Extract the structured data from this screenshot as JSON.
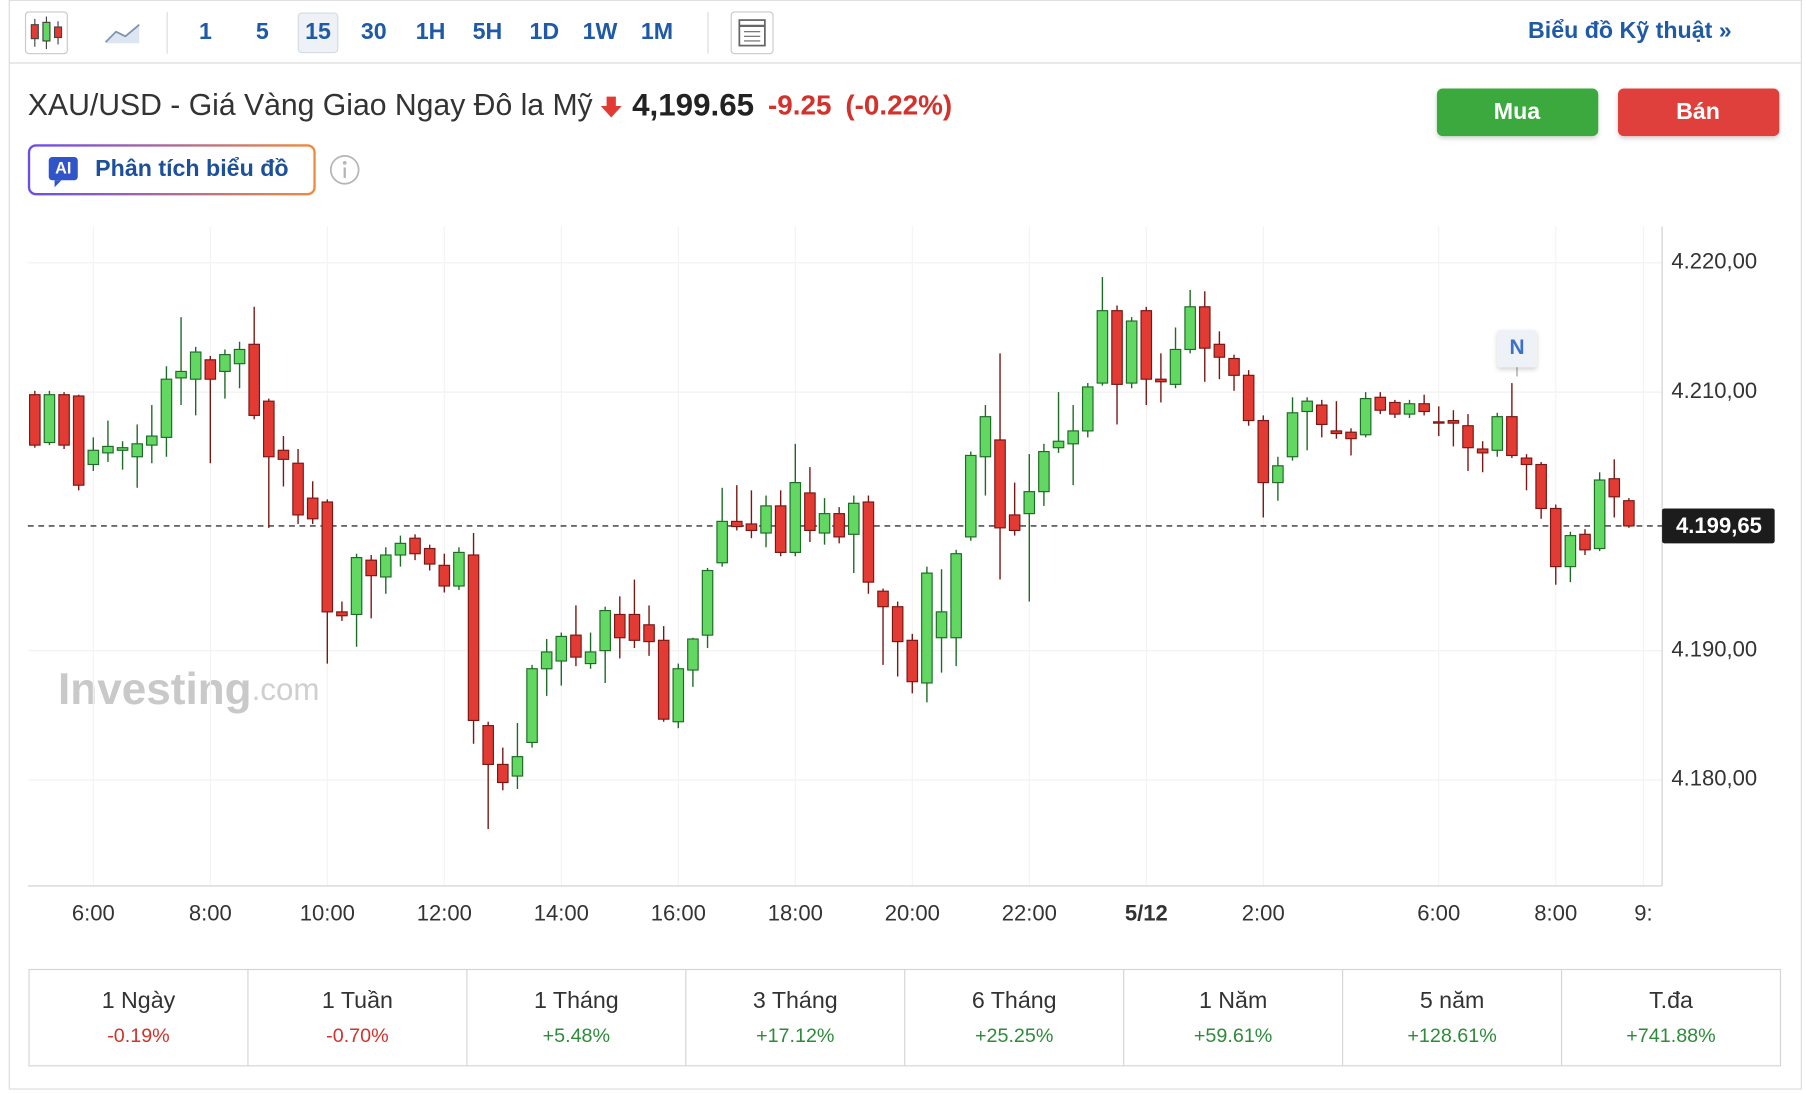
{
  "toolbar": {
    "intervals": [
      "1",
      "5",
      "15",
      "30",
      "1H",
      "5H",
      "1D",
      "1W",
      "1M"
    ],
    "selected_interval": "15",
    "link": "Biểu đồ Kỹ thuật »"
  },
  "header": {
    "title": "XAU/USD - Giá Vàng Giao Ngay Đô la Mỹ",
    "price": "4,199.65",
    "change": "-9.25",
    "change_percent": "(-0.22%)",
    "buy": "Mua",
    "sell": "Bán",
    "ai_label": "AI",
    "ai_button": "Phân tích biểu đồ"
  },
  "chart_data": {
    "type": "candlestick",
    "categories": [
      null,
      null,
      null,
      null,
      "6:00",
      null,
      null,
      null,
      null,
      null,
      null,
      null,
      "8:00",
      null,
      null,
      null,
      null,
      null,
      null,
      null,
      "10:00",
      null,
      null,
      null,
      null,
      null,
      null,
      null,
      "12:00",
      null,
      null,
      null,
      null,
      null,
      null,
      null,
      "14:00",
      null,
      null,
      null,
      null,
      null,
      null,
      null,
      "16:00",
      null,
      null,
      null,
      null,
      null,
      null,
      null,
      "18:00",
      null,
      null,
      null,
      null,
      null,
      null,
      null,
      "20:00",
      null,
      null,
      null,
      null,
      null,
      null,
      null,
      "22:00",
      null,
      null,
      null,
      null,
      null,
      null,
      null,
      "5/12",
      null,
      null,
      null,
      null,
      null,
      null,
      null,
      "2:00",
      null,
      null,
      null,
      null,
      null,
      null,
      null,
      null,
      null,
      null,
      null,
      "6:00",
      null,
      null,
      null,
      null,
      null,
      null,
      null,
      "8:00",
      null,
      null,
      null,
      null,
      null,
      "9:"
    ],
    "open": [
      4209.8,
      4206.1,
      4209.8,
      4209.7,
      4204.4,
      4205.3,
      4205.5,
      4205.0,
      4205.9,
      4206.5,
      4211.1,
      4211.0,
      4212.5,
      4211.6,
      4212.2,
      4213.7,
      4209.3,
      4205.5,
      4204.5,
      4201.8,
      4201.5,
      4193.0,
      4192.8,
      4197.0,
      4195.7,
      4197.4,
      4198.7,
      4197.9,
      4196.6,
      4195.0,
      4197.4,
      4184.2,
      4181.2,
      4180.3,
      4182.9,
      4188.6,
      4189.2,
      4191.2,
      4189.0,
      4190.0,
      4192.8,
      4192.8,
      4192.0,
      4190.8,
      4184.5,
      4188.5,
      4191.2,
      4196.8,
      4200.0,
      4199.8,
      4199.1,
      4201.2,
      4197.6,
      4202.2,
      4199.1,
      4200.6,
      4199.0,
      4201.5,
      4194.6,
      4193.4,
      4190.8,
      4187.5,
      4191.0,
      4191.0,
      4198.8,
      4205.0,
      4206.3,
      4200.5,
      4200.6,
      4202.3,
      4205.7,
      4206.0,
      4207.0,
      4210.7,
      4216.3,
      4210.7,
      4216.3,
      4211.0,
      4210.6,
      4213.3,
      4216.6,
      4213.7,
      4212.6,
      4211.3,
      4207.8,
      4203.0,
      4205.0,
      4208.5,
      4209.0,
      4207.0,
      4206.9,
      4206.7,
      4209.6,
      4209.2,
      4208.3,
      4209.1,
      4207.7,
      4207.8,
      4207.4,
      4205.6,
      4205.5,
      4208.1,
      4204.9,
      4204.4,
      4201.0,
      4196.5,
      4199.0,
      4197.9,
      4203.3,
      4201.6,
      null
    ],
    "high": [
      4210.1,
      4210.1,
      4210.0,
      4209.8,
      4206.5,
      4207.8,
      4206.2,
      4207.5,
      4209.0,
      4212.0,
      4215.8,
      4213.5,
      4212.8,
      4213.3,
      4213.9,
      4216.6,
      4209.5,
      4206.6,
      4205.6,
      4203.1,
      4201.7,
      4193.8,
      4197.5,
      4197.4,
      4198.0,
      4198.9,
      4199.0,
      4198.2,
      4197.5,
      4198.0,
      4199.1,
      4184.5,
      4182.5,
      4184.4,
      4188.9,
      4190.9,
      4191.4,
      4193.5,
      4191.4,
      4193.4,
      4194.2,
      4195.5,
      4193.5,
      4191.9,
      4189.0,
      4191.0,
      4196.4,
      4202.6,
      4202.8,
      4202.4,
      4202.0,
      4202.4,
      4206.0,
      4204.2,
      4201.8,
      4201.1,
      4202.0,
      4202.0,
      4194.8,
      4193.8,
      4191.3,
      4196.5,
      4196.3,
      4197.8,
      4205.4,
      4209.0,
      4213.0,
      4203.0,
      4205.2,
      4206.0,
      4210.0,
      4209.0,
      4210.7,
      4218.9,
      4216.7,
      4215.8,
      4216.6,
      4213.0,
      4215.0,
      4217.9,
      4217.8,
      4214.7,
      4212.9,
      4211.7,
      4208.2,
      4205.0,
      4209.6,
      4209.6,
      4209.4,
      4209.3,
      4207.2,
      4210.0,
      4210.0,
      4209.4,
      4209.4,
      4209.8,
      4208.9,
      4208.6,
      4208.3,
      4206.2,
      4208.4,
      4210.7,
      4205.2,
      4204.6,
      4201.3,
      4199.2,
      4199.4,
      4203.8,
      4204.8,
      4201.8,
      null
    ],
    "low": [
      4205.7,
      4205.9,
      4205.6,
      4202.4,
      4203.9,
      4204.6,
      4204.0,
      4202.6,
      4204.5,
      4205.0,
      4209.0,
      4208.2,
      4204.5,
      4209.5,
      4210.3,
      4207.9,
      4199.5,
      4202.7,
      4199.8,
      4199.8,
      4189.0,
      4192.3,
      4190.3,
      4192.5,
      4194.4,
      4196.5,
      4197.0,
      4196.2,
      4194.5,
      4194.7,
      4182.8,
      4176.2,
      4179.2,
      4179.3,
      4182.5,
      4186.5,
      4187.3,
      4188.8,
      4188.6,
      4187.5,
      4189.4,
      4190.2,
      4189.6,
      4184.5,
      4184.0,
      4187.2,
      4190.2,
      4196.5,
      4199.3,
      4198.7,
      4198.0,
      4197.3,
      4197.3,
      4198.4,
      4198.2,
      4198.3,
      4196.0,
      4194.4,
      4188.9,
      4188.0,
      4186.7,
      4186.0,
      4188.3,
      4188.8,
      4198.5,
      4202.0,
      4195.5,
      4198.9,
      4193.8,
      4201.2,
      4205.3,
      4202.8,
      4206.5,
      4210.5,
      4207.5,
      4210.3,
      4209.0,
      4209.2,
      4210.3,
      4213.0,
      4210.8,
      4211.0,
      4210.1,
      4207.4,
      4200.3,
      4201.6,
      4204.7,
      4205.5,
      4206.5,
      4206.4,
      4205.1,
      4206.5,
      4208.3,
      4208.0,
      4208.0,
      4208.2,
      4206.6,
      4205.8,
      4203.9,
      4203.8,
      4205.0,
      4204.9,
      4202.4,
      4200.2,
      4195.1,
      4195.3,
      4197.4,
      4197.7,
      4200.3,
      4199.5,
      null
    ],
    "close": [
      4205.9,
      4209.8,
      4205.9,
      4202.8,
      4205.5,
      4205.8,
      4205.7,
      4206.0,
      4206.6,
      4211.0,
      4211.6,
      4213.1,
      4211.0,
      4212.9,
      4213.3,
      4208.2,
      4205.0,
      4204.8,
      4200.5,
      4200.2,
      4193.0,
      4192.7,
      4197.2,
      4195.8,
      4197.4,
      4198.3,
      4197.5,
      4196.7,
      4195.0,
      4197.6,
      4184.6,
      4181.2,
      4179.8,
      4181.8,
      4188.6,
      4189.9,
      4191.1,
      4189.5,
      4189.9,
      4193.1,
      4191.0,
      4190.8,
      4190.7,
      4184.7,
      4188.6,
      4190.9,
      4196.2,
      4200.0,
      4199.6,
      4199.3,
      4201.2,
      4197.6,
      4203.0,
      4199.3,
      4200.6,
      4198.8,
      4201.4,
      4195.3,
      4193.4,
      4190.7,
      4187.6,
      4196.0,
      4193.0,
      4197.5,
      4205.1,
      4208.1,
      4199.5,
      4199.3,
      4202.3,
      4205.4,
      4206.2,
      4207.0,
      4210.4,
      4216.3,
      4210.6,
      4215.5,
      4211.0,
      4210.8,
      4213.3,
      4216.6,
      4213.4,
      4212.7,
      4211.3,
      4207.8,
      4203.0,
      4204.3,
      4208.4,
      4209.3,
      4207.5,
      4206.8,
      4206.4,
      4209.5,
      4208.6,
      4208.3,
      4209.1,
      4208.5,
      4207.6,
      4207.6,
      4205.7,
      4205.3,
      4208.1,
      4205.1,
      4204.4,
      4201.0,
      4196.5,
      4198.9,
      4197.8,
      4203.2,
      4201.9,
      4199.65,
      null
    ],
    "up_color": "#62d862",
    "up_edge": "#1d6b26",
    "down_color": "#e23b33",
    "down_edge": "#7a1714",
    "ylim": [
      4171.8,
      4222.8
    ],
    "yticks": [
      {
        "value": 4180,
        "label": "4.180,00"
      },
      {
        "value": 4190,
        "label": "4.190,00"
      },
      {
        "value": 4210,
        "label": "4.210,00"
      },
      {
        "value": 4220,
        "label": "4.220,00"
      }
    ],
    "last_price": {
      "value": 4199.65,
      "label": "4.199,65"
    },
    "news_marker": "N",
    "watermark": [
      "Investing",
      ".com"
    ],
    "grid": true
  },
  "performance": [
    {
      "period": "1 Ngày",
      "change": "-0.19%"
    },
    {
      "period": "1 Tuần",
      "change": "-0.70%"
    },
    {
      "period": "1 Tháng",
      "change": "+5.48%"
    },
    {
      "period": "3 Tháng",
      "change": "+17.12%"
    },
    {
      "period": "6 Tháng",
      "change": "+25.25%"
    },
    {
      "period": "1 Năm",
      "change": "+59.61%"
    },
    {
      "period": "5 năm",
      "change": "+128.61%"
    },
    {
      "period": "T.đa",
      "change": "+741.88%"
    }
  ]
}
